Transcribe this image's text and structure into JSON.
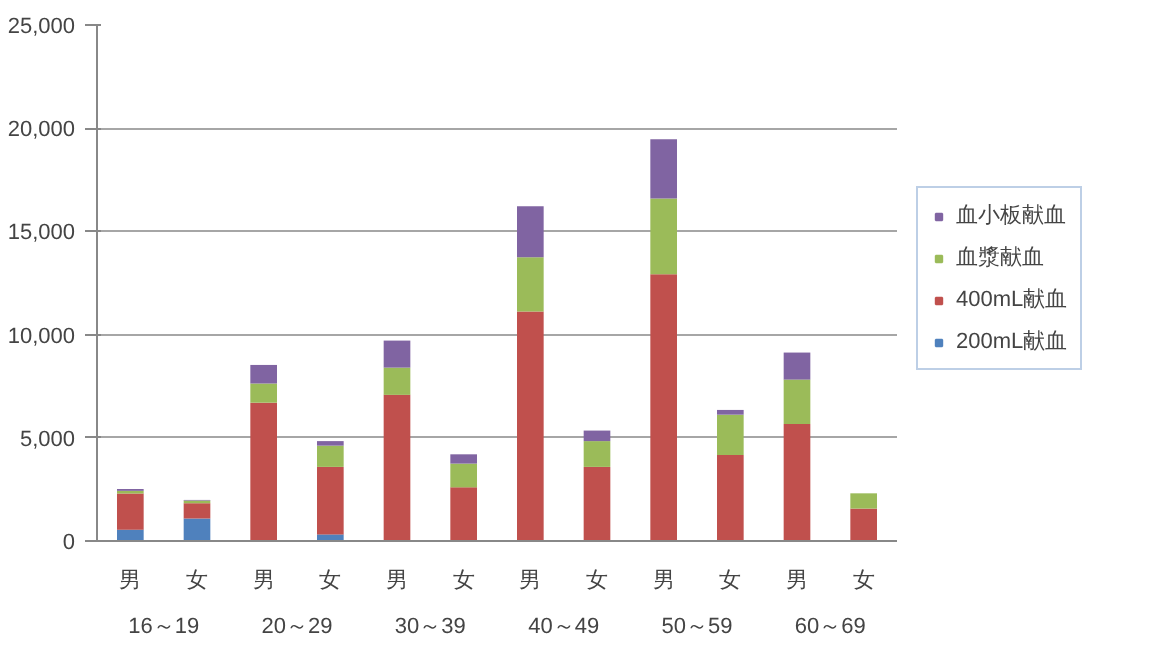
{
  "chart_data": {
    "type": "bar",
    "stacked": true,
    "categories": [
      "男",
      "女",
      "男",
      "女",
      "男",
      "女",
      "男",
      "女",
      "男",
      "女",
      "男",
      "女"
    ],
    "annotations": [
      "16～19",
      "20～29",
      "30～39",
      "40～49",
      "50～59",
      "60～69"
    ],
    "series": [
      {
        "name": "200mL献血",
        "color": "#4f81bd",
        "values": [
          550,
          1090,
          0,
          320,
          0,
          0,
          0,
          0,
          0,
          0,
          0,
          0
        ]
      },
      {
        "name": "400mL献血",
        "color": "#c0504d",
        "values": [
          1750,
          740,
          6700,
          3270,
          7080,
          2600,
          11120,
          3590,
          12920,
          4170,
          5670,
          1570
        ]
      },
      {
        "name": "血漿献血",
        "color": "#9bbb59",
        "values": [
          130,
          130,
          930,
          1030,
          1320,
          1150,
          2630,
          1250,
          3680,
          1950,
          2150,
          740
        ]
      },
      {
        "name": "血小板献血",
        "color": "#8064a2",
        "values": [
          90,
          30,
          900,
          220,
          1310,
          450,
          2470,
          510,
          2860,
          230,
          1310,
          0
        ]
      }
    ],
    "ylim": [
      0,
      25000
    ],
    "yticks": [
      0,
      {
        "value": 5000,
        "label": "5,000"
      },
      {
        "value": 10000,
        "label": "10,000"
      },
      {
        "value": 15000,
        "label": "15,000"
      },
      {
        "value": 20000,
        "label": "20,000"
      },
      {
        "value": 25000,
        "label": "25,000"
      }
    ],
    "grid": "y",
    "legend": "right"
  }
}
